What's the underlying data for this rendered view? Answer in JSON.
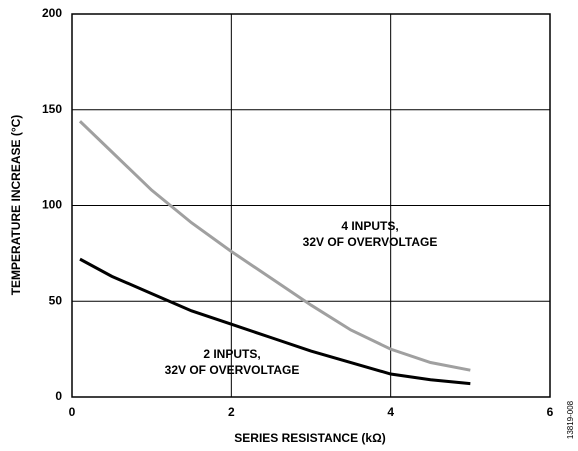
{
  "chart_data": {
    "type": "line",
    "xlabel": "SERIES RESISTANCE (kΩ)",
    "ylabel": "TEMPERATURE INCREASE (°C)",
    "figure_id": "13819-008",
    "x": [
      0.1,
      0.5,
      1,
      1.5,
      2,
      2.5,
      3,
      3.5,
      4,
      4.5,
      5
    ],
    "series": [
      {
        "label_lines": [
          "4 INPUTS,",
          "32V OF OVERVOLTAGE"
        ],
        "color": "#a0a0a0",
        "values": [
          144,
          128,
          108,
          91,
          76,
          62,
          48,
          35,
          25,
          18,
          14
        ]
      },
      {
        "label_lines": [
          "2 INPUTS,",
          "32V OF OVERVOLTAGE"
        ],
        "color": "#000000",
        "values": [
          72,
          63,
          54,
          45,
          38,
          31,
          24,
          18,
          12,
          9,
          7
        ]
      }
    ],
    "xlim": [
      0,
      6
    ],
    "xticks": [
      0,
      2,
      4,
      6
    ],
    "ylim": [
      0,
      200
    ],
    "yticks": [
      0,
      50,
      100,
      150,
      200
    ],
    "grid": true
  }
}
